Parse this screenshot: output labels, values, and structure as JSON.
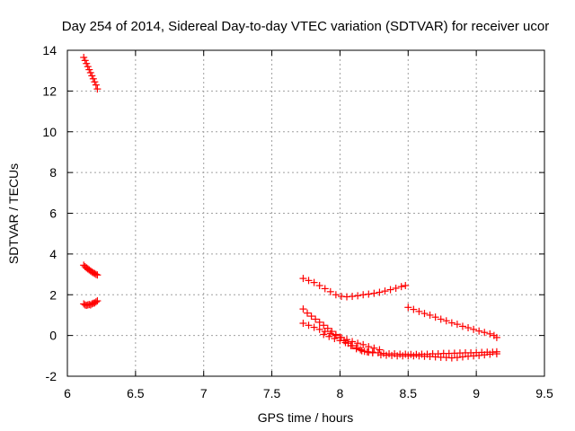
{
  "chart_data": {
    "type": "scatter",
    "title": "Day 254 of 2014, Sidereal Day-to-day VTEC variation (SDTVAR) for receiver ucor",
    "xlabel": "GPS time / hours",
    "ylabel": "SDTVAR / TECUs",
    "xlim": [
      6,
      9.5
    ],
    "ylim": [
      -2,
      14
    ],
    "x_ticks": [
      "6",
      "6.5",
      "7",
      "7.5",
      "8",
      "8.5",
      "9",
      "9.5"
    ],
    "y_ticks": [
      "-2",
      "0",
      "2",
      "4",
      "6",
      "8",
      "10",
      "12",
      "14"
    ],
    "grid": true,
    "marker": "plus",
    "color": "#ff0000",
    "series": [
      {
        "points": [
          [
            6.12,
            13.65
          ],
          [
            6.13,
            13.5
          ],
          [
            6.14,
            13.35
          ],
          [
            6.15,
            13.2
          ],
          [
            6.16,
            13.05
          ],
          [
            6.17,
            12.9
          ],
          [
            6.18,
            12.75
          ],
          [
            6.19,
            12.6
          ],
          [
            6.2,
            12.45
          ],
          [
            6.21,
            12.3
          ],
          [
            6.22,
            12.1
          ]
        ]
      },
      {
        "points": [
          [
            6.12,
            3.45
          ],
          [
            6.13,
            3.38
          ],
          [
            6.14,
            3.32
          ],
          [
            6.15,
            3.27
          ],
          [
            6.16,
            3.22
          ],
          [
            6.17,
            3.17
          ],
          [
            6.18,
            3.12
          ],
          [
            6.19,
            3.08
          ],
          [
            6.2,
            3.04
          ],
          [
            6.21,
            3.0
          ],
          [
            6.22,
            2.97
          ]
        ]
      },
      {
        "points": [
          [
            6.12,
            1.55
          ],
          [
            6.13,
            1.5
          ],
          [
            6.14,
            1.48
          ],
          [
            6.15,
            1.5
          ],
          [
            6.16,
            1.52
          ],
          [
            6.17,
            1.5
          ],
          [
            6.18,
            1.55
          ],
          [
            6.19,
            1.58
          ],
          [
            6.2,
            1.6
          ],
          [
            6.21,
            1.65
          ],
          [
            6.22,
            1.7
          ]
        ]
      },
      {
        "points": [
          [
            7.73,
            2.8
          ],
          [
            7.77,
            2.7
          ],
          [
            7.81,
            2.6
          ],
          [
            7.85,
            2.45
          ],
          [
            7.89,
            2.3
          ],
          [
            7.93,
            2.15
          ],
          [
            7.97,
            2.0
          ],
          [
            8.01,
            1.92
          ],
          [
            8.05,
            1.9
          ],
          [
            8.09,
            1.92
          ],
          [
            8.13,
            1.95
          ],
          [
            8.17,
            2.0
          ],
          [
            8.21,
            2.03
          ],
          [
            8.25,
            2.07
          ],
          [
            8.29,
            2.12
          ],
          [
            8.33,
            2.18
          ],
          [
            8.37,
            2.25
          ],
          [
            8.41,
            2.32
          ],
          [
            8.45,
            2.4
          ],
          [
            8.48,
            2.45
          ]
        ]
      },
      {
        "points": [
          [
            7.73,
            1.3
          ],
          [
            7.76,
            1.1
          ],
          [
            7.79,
            0.95
          ],
          [
            7.82,
            0.8
          ],
          [
            7.85,
            0.65
          ],
          [
            7.88,
            0.5
          ],
          [
            7.91,
            0.35
          ],
          [
            7.94,
            0.2
          ],
          [
            7.97,
            0.05
          ],
          [
            8.0,
            -0.1
          ],
          [
            8.03,
            -0.25
          ],
          [
            8.06,
            -0.38
          ],
          [
            8.09,
            -0.5
          ],
          [
            8.12,
            -0.6
          ],
          [
            8.15,
            -0.7
          ],
          [
            8.18,
            -0.78
          ],
          [
            8.21,
            -0.82
          ],
          [
            8.24,
            -0.85
          ]
        ]
      },
      {
        "points": [
          [
            7.73,
            0.6
          ],
          [
            7.77,
            0.5
          ],
          [
            7.81,
            0.4
          ],
          [
            7.85,
            0.3
          ],
          [
            7.89,
            0.2
          ],
          [
            7.93,
            0.1
          ],
          [
            7.97,
            0.0
          ],
          [
            8.01,
            -0.1
          ],
          [
            8.05,
            -0.2
          ],
          [
            8.09,
            -0.3
          ],
          [
            8.13,
            -0.38
          ],
          [
            8.17,
            -0.45
          ],
          [
            8.21,
            -0.55
          ],
          [
            8.25,
            -0.62
          ],
          [
            8.29,
            -0.7
          ]
        ]
      },
      {
        "points": [
          [
            7.88,
            0.05
          ],
          [
            7.92,
            -0.05
          ],
          [
            7.96,
            -0.15
          ],
          [
            8.0,
            -0.25
          ],
          [
            8.04,
            -0.35
          ],
          [
            8.08,
            -0.5
          ],
          [
            8.12,
            -0.65
          ],
          [
            8.16,
            -0.75
          ],
          [
            8.2,
            -0.8
          ],
          [
            8.24,
            -0.82
          ],
          [
            8.28,
            -0.85
          ],
          [
            8.32,
            -0.88
          ],
          [
            8.36,
            -0.9
          ],
          [
            8.4,
            -0.9
          ],
          [
            8.44,
            -0.92
          ],
          [
            8.48,
            -0.92
          ],
          [
            8.52,
            -0.93
          ],
          [
            8.56,
            -0.93
          ],
          [
            8.6,
            -0.92
          ],
          [
            8.64,
            -0.92
          ],
          [
            8.68,
            -0.9
          ],
          [
            8.72,
            -0.9
          ],
          [
            8.76,
            -0.88
          ],
          [
            8.8,
            -0.88
          ],
          [
            8.84,
            -0.87
          ],
          [
            8.88,
            -0.86
          ],
          [
            8.92,
            -0.85
          ],
          [
            8.96,
            -0.85
          ],
          [
            9.0,
            -0.84
          ],
          [
            9.04,
            -0.83
          ],
          [
            9.08,
            -0.82
          ],
          [
            9.12,
            -0.82
          ],
          [
            9.15,
            -0.8
          ]
        ]
      },
      {
        "points": [
          [
            8.3,
            -0.95
          ],
          [
            8.34,
            -0.97
          ],
          [
            8.38,
            -0.98
          ],
          [
            8.42,
            -1.0
          ],
          [
            8.46,
            -1.0
          ],
          [
            8.5,
            -1.0
          ],
          [
            8.54,
            -1.0
          ],
          [
            8.58,
            -1.0
          ],
          [
            8.62,
            -1.02
          ],
          [
            8.66,
            -1.03
          ],
          [
            8.7,
            -1.05
          ],
          [
            8.74,
            -1.07
          ],
          [
            8.78,
            -1.08
          ],
          [
            8.82,
            -1.1
          ],
          [
            8.86,
            -1.08
          ],
          [
            8.9,
            -1.05
          ],
          [
            8.94,
            -1.02
          ],
          [
            8.98,
            -1.0
          ],
          [
            9.02,
            -0.98
          ],
          [
            9.06,
            -0.95
          ],
          [
            9.1,
            -0.92
          ],
          [
            9.15,
            -0.9
          ]
        ]
      },
      {
        "points": [
          [
            8.5,
            1.38
          ],
          [
            8.54,
            1.28
          ],
          [
            8.58,
            1.18
          ],
          [
            8.62,
            1.08
          ],
          [
            8.66,
            1.0
          ],
          [
            8.7,
            0.9
          ],
          [
            8.74,
            0.8
          ],
          [
            8.78,
            0.72
          ],
          [
            8.82,
            0.62
          ],
          [
            8.86,
            0.55
          ],
          [
            8.9,
            0.45
          ],
          [
            8.94,
            0.38
          ],
          [
            8.98,
            0.3
          ],
          [
            9.02,
            0.22
          ],
          [
            9.06,
            0.15
          ],
          [
            9.1,
            0.08
          ],
          [
            9.13,
            0.0
          ],
          [
            9.15,
            -0.1
          ]
        ]
      }
    ]
  }
}
